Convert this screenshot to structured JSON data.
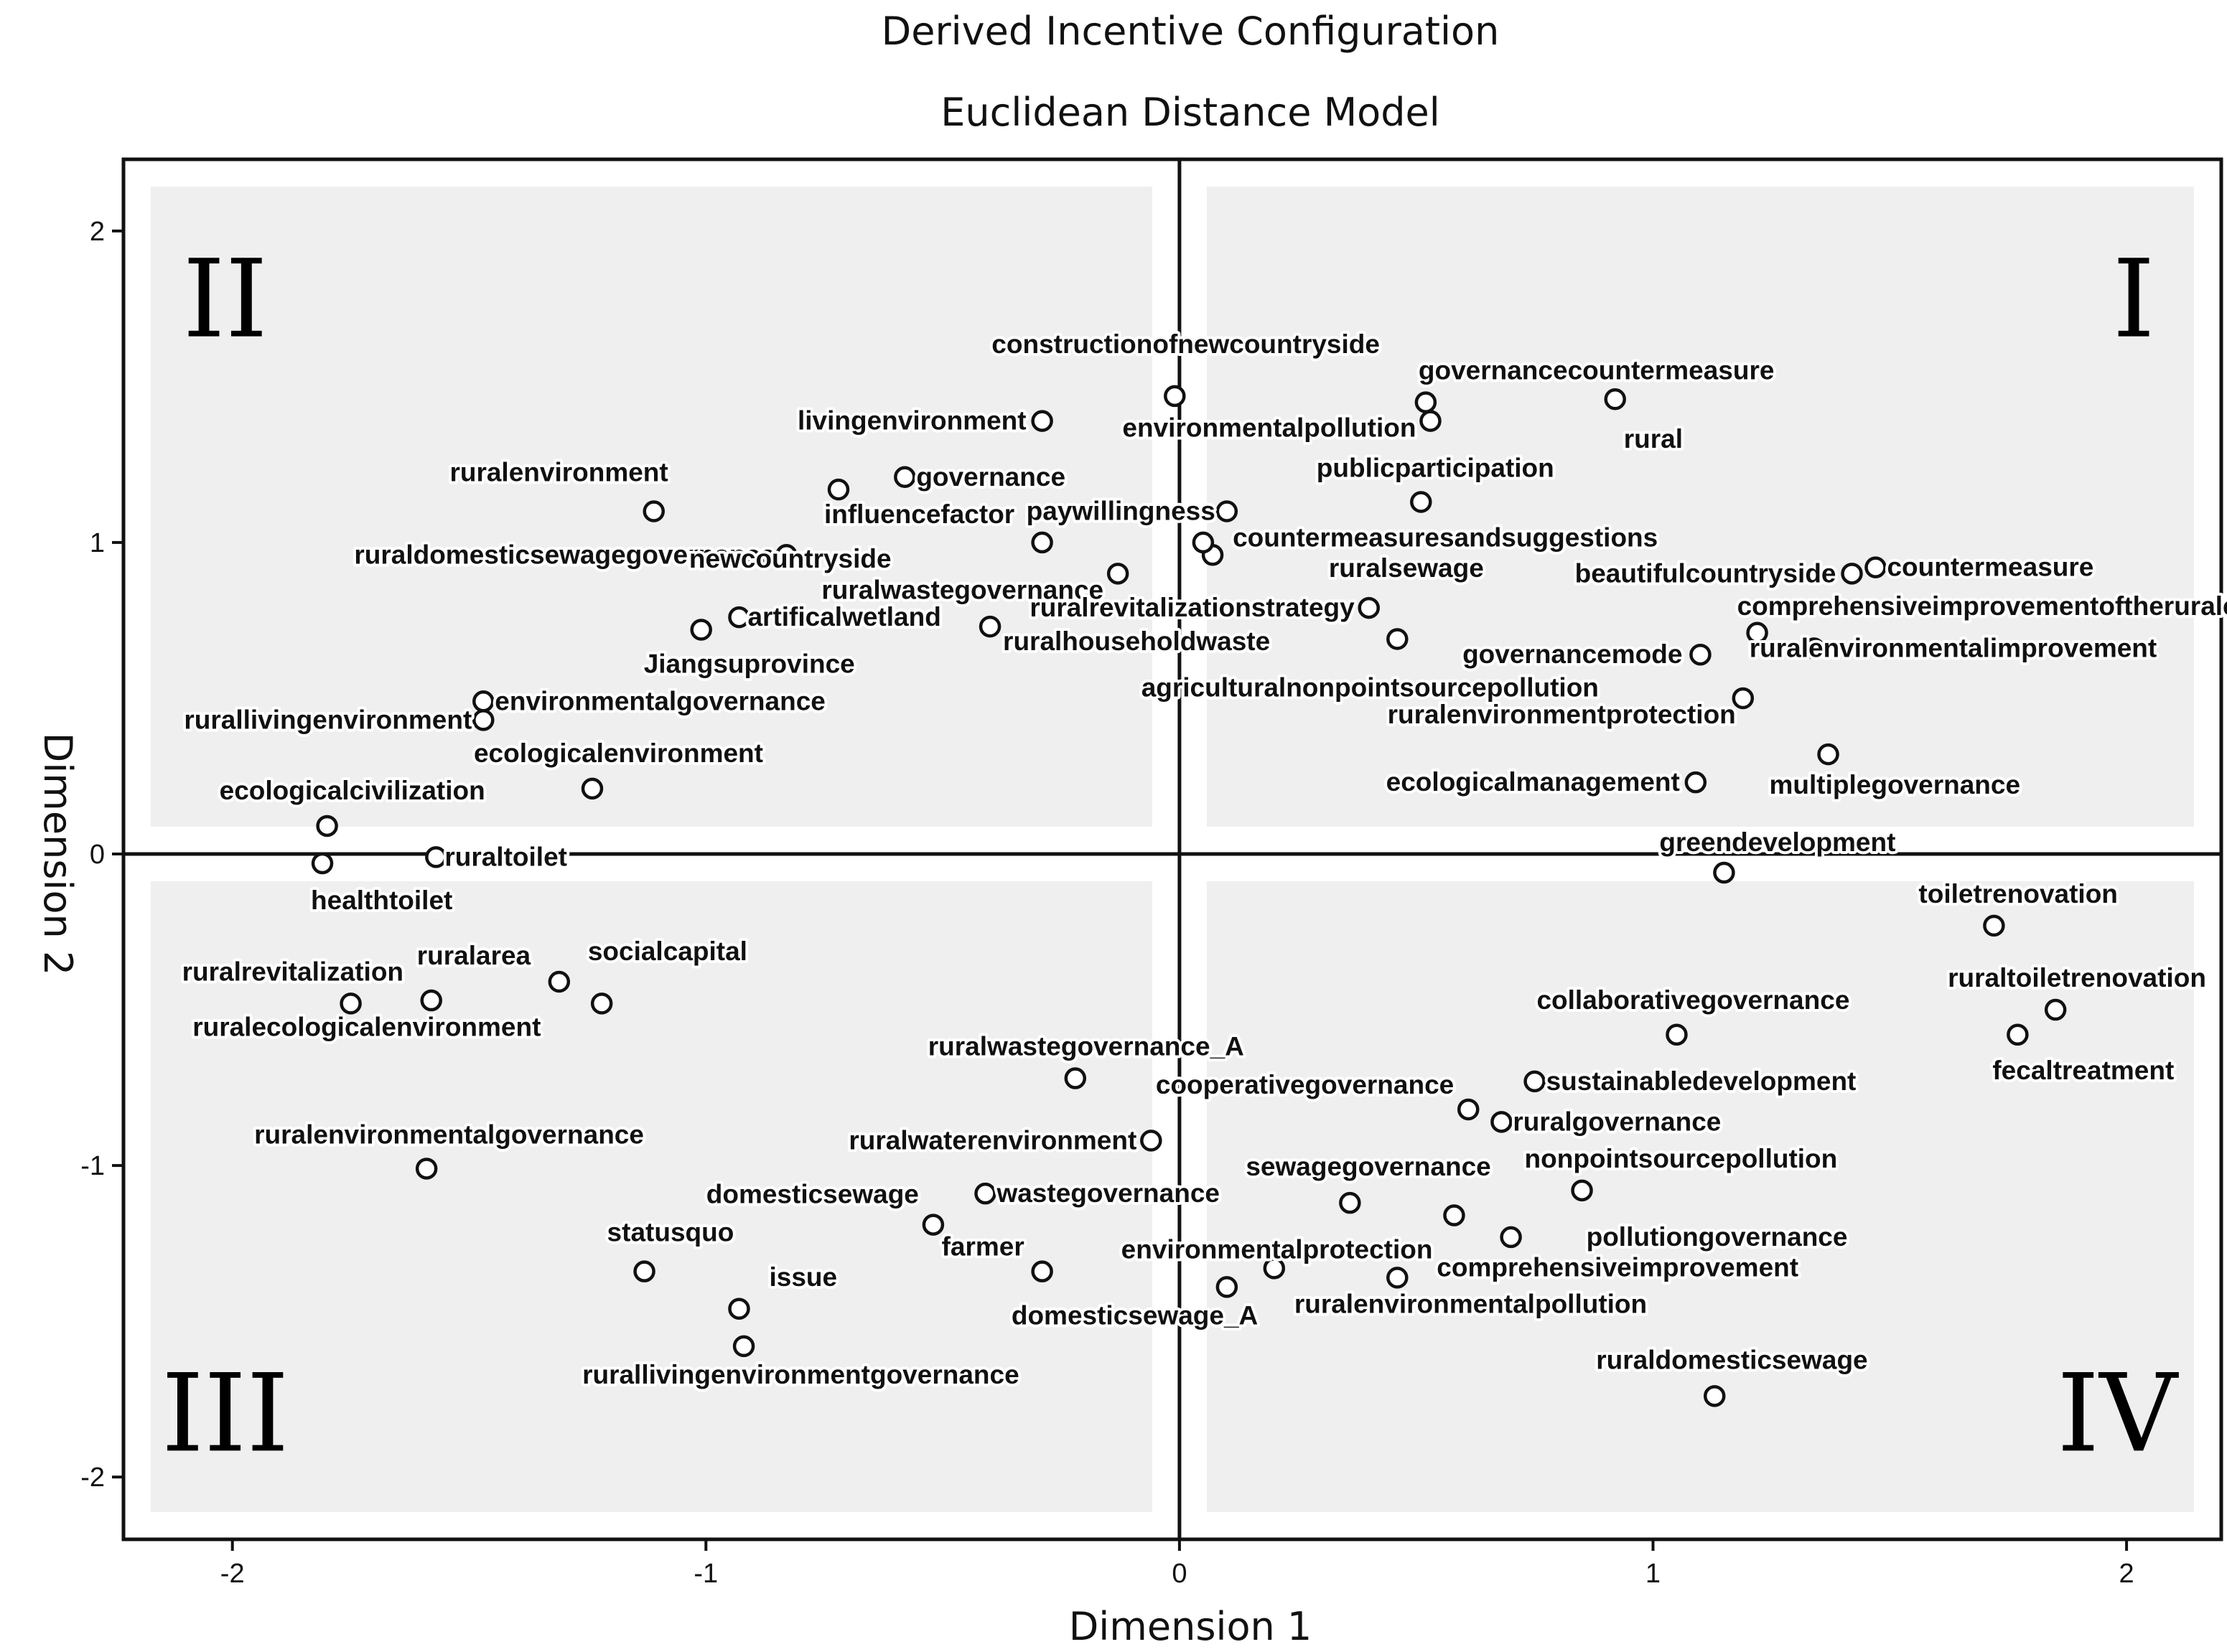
{
  "chart_data": {
    "type": "scatter",
    "title": "Derived Incentive Configuration",
    "subtitle": "Euclidean Distance Model",
    "xlabel": "Dimension 1",
    "ylabel": "Dimension 2",
    "xlim": [
      -2.23,
      2.2
    ],
    "ylim": [
      -2.2,
      2.23
    ],
    "xticks": [
      -2,
      -1,
      0,
      1,
      2
    ],
    "yticks": [
      -2,
      -1,
      0,
      1,
      2
    ],
    "grid": false,
    "quadrants": [
      {
        "label": "I",
        "position": "top-right"
      },
      {
        "label": "II",
        "position": "top-left"
      },
      {
        "label": "III",
        "position": "bottom-left"
      },
      {
        "label": "IV",
        "position": "bottom-right"
      }
    ],
    "points": [
      {
        "label": "constructionofnewcountryside",
        "x": -0.01,
        "y": 1.47
      },
      {
        "label": "governancecountermeasure",
        "x": 0.52,
        "y": 1.45
      },
      {
        "label": "environmentalpollution",
        "x": 0.53,
        "y": 1.39
      },
      {
        "label": "rural",
        "x": 0.92,
        "y": 1.46
      },
      {
        "label": "livingenvironment",
        "x": -0.29,
        "y": 1.39
      },
      {
        "label": "publicparticipation",
        "x": 0.51,
        "y": 1.13
      },
      {
        "label": "ruralenvironment",
        "x": -1.11,
        "y": 1.1
      },
      {
        "label": "governance",
        "x": -0.58,
        "y": 1.21
      },
      {
        "label": "influencefactor",
        "x": -0.72,
        "y": 1.17
      },
      {
        "label": "paywillingness",
        "x": 0.1,
        "y": 1.1
      },
      {
        "label": "countermeasuresandsuggestions",
        "x": 0.07,
        "y": 0.96
      },
      {
        "label": "ruraldomesticsewagegovernance",
        "x": -0.83,
        "y": 0.96
      },
      {
        "label": "ruralsewage",
        "x": 0.05,
        "y": 1.0
      },
      {
        "label": "beautifulcountryside",
        "x": 1.42,
        "y": 0.9
      },
      {
        "label": "countermeasure",
        "x": 1.47,
        "y": 0.92
      },
      {
        "label": "newcountryside",
        "x": -0.29,
        "y": 1.0
      },
      {
        "label": "ruralwastegovernance",
        "x": -0.13,
        "y": 0.9
      },
      {
        "label": "ruralrevitalizationstrategy",
        "x": 0.4,
        "y": 0.79
      },
      {
        "label": "comprehensiveimprovementoftheruralenvironment",
        "x": 1.22,
        "y": 0.71
      },
      {
        "label": "artificalwetland",
        "x": -0.93,
        "y": 0.76
      },
      {
        "label": "ruralhouseholdwaste",
        "x": -0.4,
        "y": 0.73
      },
      {
        "label": "Jiangsuprovince",
        "x": -1.01,
        "y": 0.72
      },
      {
        "label": "governancemode",
        "x": 1.1,
        "y": 0.64
      },
      {
        "label": "agriculturalnonpointsourcepollution",
        "x": 0.46,
        "y": 0.69
      },
      {
        "label": "ruralenvironmentalimprovement",
        "x": 1.34,
        "y": 0.66
      },
      {
        "label": "rurallivingenvironment",
        "x": -1.47,
        "y": 0.43
      },
      {
        "label": "environmentalgovernance",
        "x": -1.47,
        "y": 0.49
      },
      {
        "label": "ruralenvironmentprotection",
        "x": 1.19,
        "y": 0.5
      },
      {
        "label": "ecologicalenvironment",
        "x": -1.24,
        "y": 0.21
      },
      {
        "label": "multiplegovernance",
        "x": 1.37,
        "y": 0.32
      },
      {
        "label": "ecologicalmanagement",
        "x": 1.09,
        "y": 0.23
      },
      {
        "label": "ecologicalcivilization",
        "x": -1.8,
        "y": 0.09
      },
      {
        "label": "greendevelopment",
        "x": 1.15,
        "y": -0.06
      },
      {
        "label": "ruraltoilet",
        "x": -1.57,
        "y": -0.01
      },
      {
        "label": "healthtoilet",
        "x": -1.81,
        "y": -0.03
      },
      {
        "label": "toiletrenovation",
        "x": 1.72,
        "y": -0.23
      },
      {
        "label": "ruraltoiletrenovation",
        "x": 1.85,
        "y": -0.5
      },
      {
        "label": "fecaltreatment",
        "x": 1.77,
        "y": -0.58
      },
      {
        "label": "ruralrevitalization",
        "x": -1.75,
        "y": -0.48
      },
      {
        "label": "ruralarea",
        "x": -1.58,
        "y": -0.47
      },
      {
        "label": "socialcapital",
        "x": -1.31,
        "y": -0.41
      },
      {
        "label": "ruralecologicalenvironment",
        "x": -1.22,
        "y": -0.48
      },
      {
        "label": "collaborativegovernance",
        "x": 1.05,
        "y": -0.58
      },
      {
        "label": "sustainabledevelopment",
        "x": 0.75,
        "y": -0.73
      },
      {
        "label": "ruralwastegovernance_A",
        "x": -0.22,
        "y": -0.72
      },
      {
        "label": "cooperativegovernance",
        "x": 0.61,
        "y": -0.82
      },
      {
        "label": "ruralgovernance",
        "x": 0.68,
        "y": -0.86
      },
      {
        "label": "ruralwaterenvironment",
        "x": -0.06,
        "y": -0.92
      },
      {
        "label": "ruralenvironmentalgovernance",
        "x": -1.59,
        "y": -1.01
      },
      {
        "label": "sewagegovernance",
        "x": 0.36,
        "y": -1.12
      },
      {
        "label": "nonpointsourcepollution",
        "x": 0.85,
        "y": -1.08
      },
      {
        "label": "domesticsewage",
        "x": -0.52,
        "y": -1.19
      },
      {
        "label": "wastegovernance",
        "x": -0.41,
        "y": -1.09
      },
      {
        "label": "environmentalprotection",
        "x": 0.58,
        "y": -1.16
      },
      {
        "label": "pollutiongovernance",
        "x": 0.7,
        "y": -1.23
      },
      {
        "label": "farmer",
        "x": -0.29,
        "y": -1.34
      },
      {
        "label": "comprehensiveimprovement",
        "x": 0.46,
        "y": -1.36
      },
      {
        "label": "statusquo",
        "x": -1.13,
        "y": -1.34
      },
      {
        "label": "issue",
        "x": -0.93,
        "y": -1.46
      },
      {
        "label": "domesticsewage_A",
        "x": 0.1,
        "y": -1.39
      },
      {
        "label": "ruralenvironmentalpollution",
        "x": 0.2,
        "y": -1.33
      },
      {
        "label": "rurallivingenvironmentgovernance",
        "x": -0.92,
        "y": -1.58
      },
      {
        "label": "ruraldomesticsewage",
        "x": 1.13,
        "y": -1.74
      }
    ]
  }
}
